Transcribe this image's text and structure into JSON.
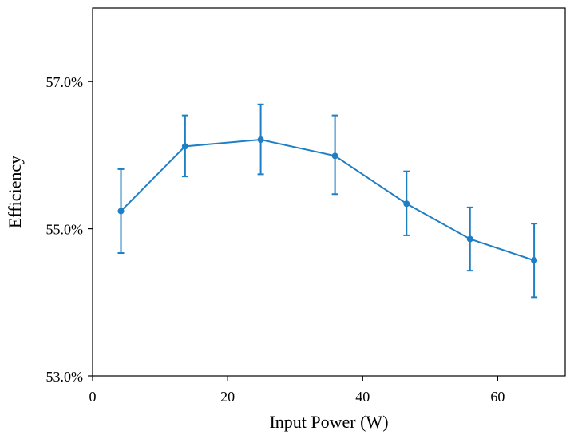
{
  "chart_data": {
    "type": "line",
    "title": "",
    "xlabel": "Input Power (W)",
    "ylabel": "Efficiency",
    "xlim": [
      0,
      70
    ],
    "ylim": [
      53.0,
      58.0
    ],
    "x_ticks": [
      0,
      20,
      40,
      60
    ],
    "x_tick_labels": [
      "0",
      "20",
      "40",
      "60"
    ],
    "y_ticks": [
      53.0,
      55.0,
      57.0
    ],
    "y_tick_labels": [
      "53.0%",
      "55.0%",
      "57.0%"
    ],
    "grid": false,
    "series": [
      {
        "name": "Efficiency",
        "color": "#1f7fc4",
        "x": [
          4.2,
          13.7,
          24.9,
          35.9,
          46.5,
          55.9,
          65.4
        ],
        "values": [
          55.24,
          56.12,
          56.21,
          55.99,
          55.34,
          54.86,
          54.57
        ],
        "err_upper": [
          55.81,
          56.54,
          56.69,
          56.54,
          55.78,
          55.29,
          55.07
        ],
        "err_lower": [
          54.67,
          55.71,
          55.74,
          55.47,
          54.91,
          54.43,
          54.07
        ]
      }
    ]
  }
}
